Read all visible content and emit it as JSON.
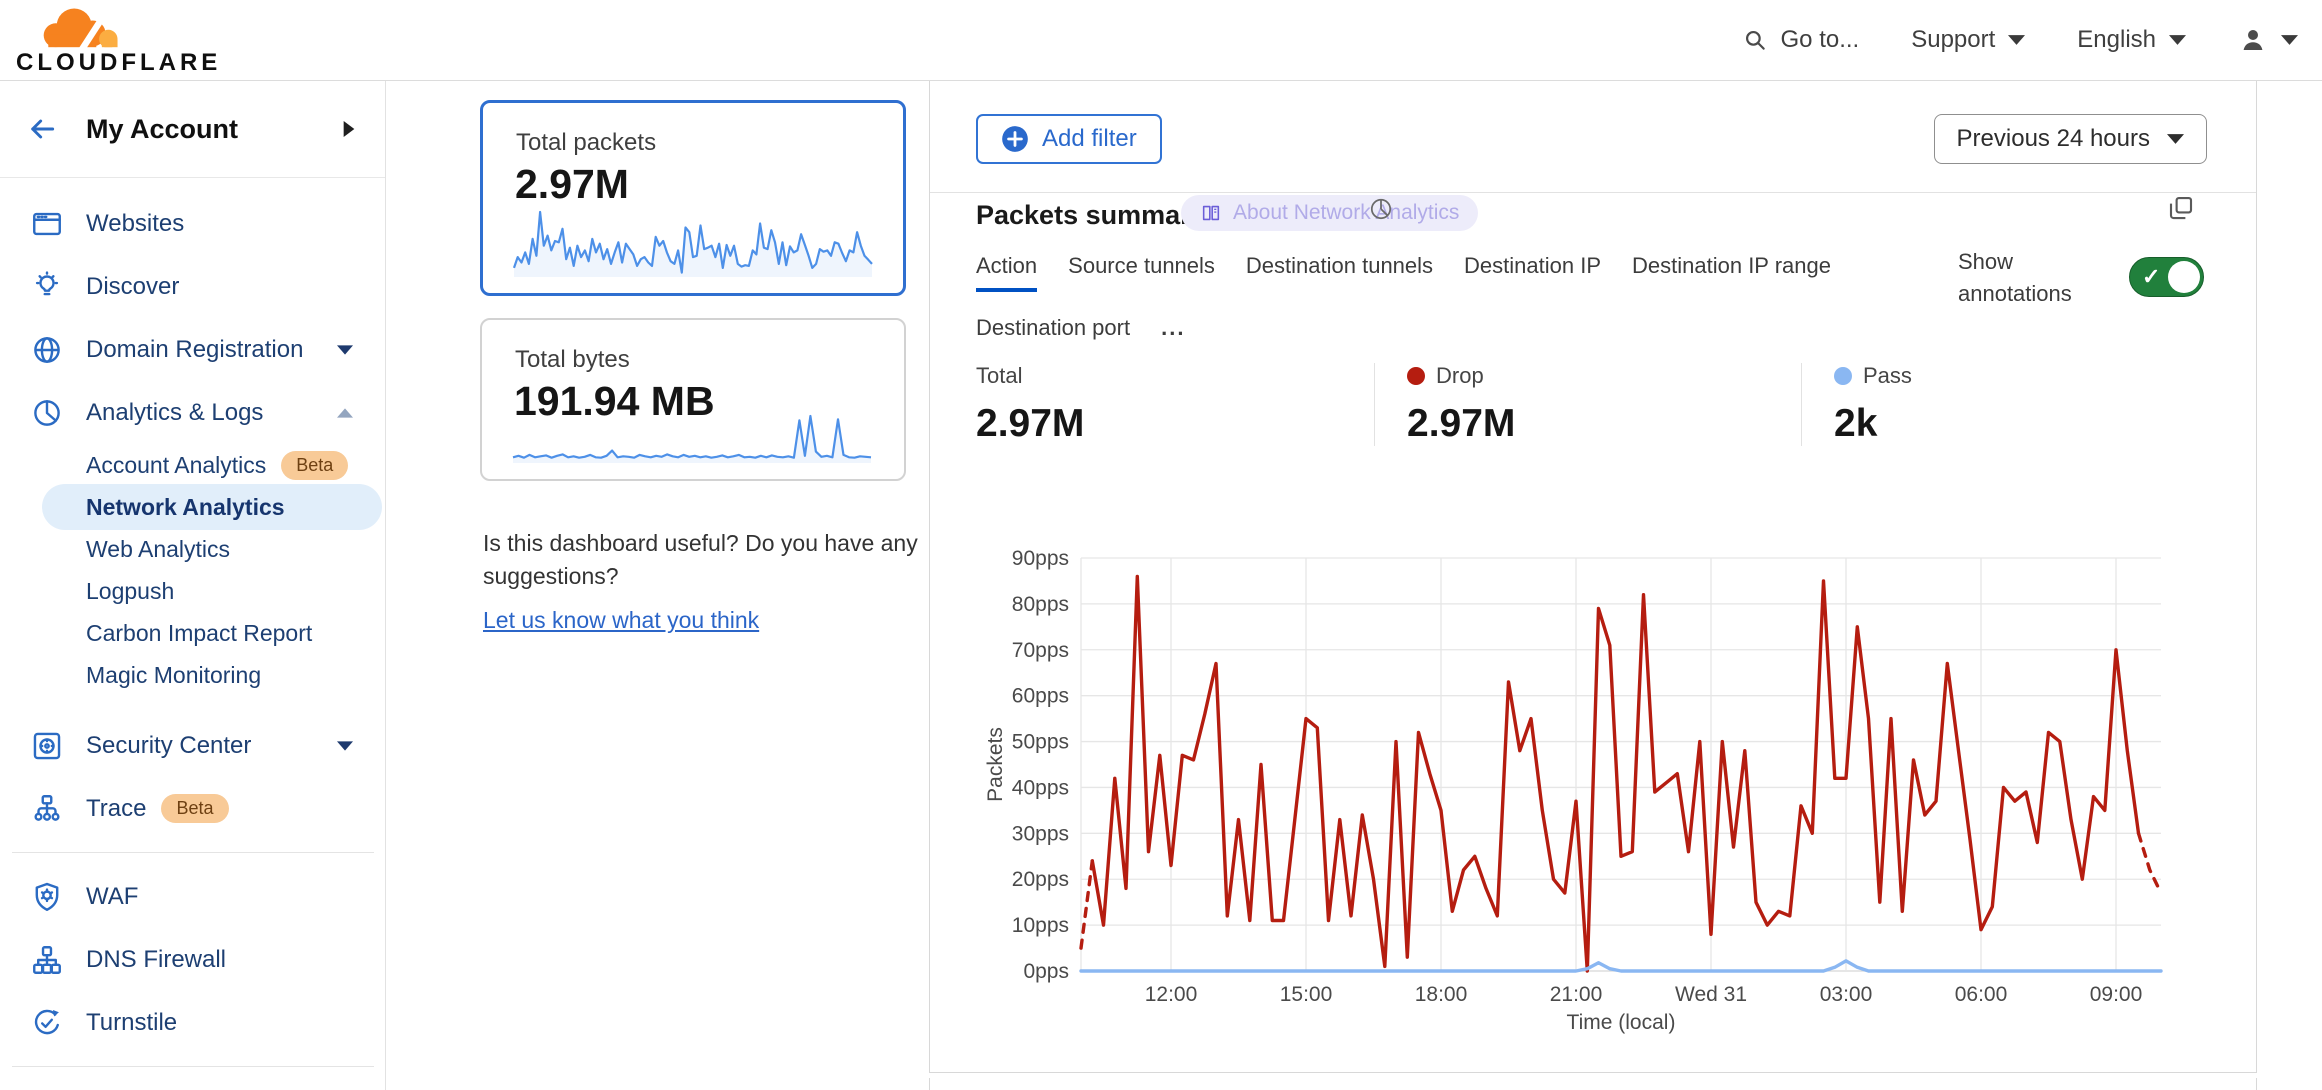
{
  "header": {
    "logo_text": "CLOUDFLARE",
    "goto_label": "Go to...",
    "support_label": "Support",
    "language_label": "English"
  },
  "sidebar": {
    "account_label": "My Account",
    "items": [
      {
        "type": "item",
        "label": "Websites",
        "icon": "browser-icon"
      },
      {
        "type": "item",
        "label": "Discover",
        "icon": "lightbulb-icon"
      },
      {
        "type": "item",
        "label": "Domain Registration",
        "icon": "globe-icon",
        "caret": "down"
      },
      {
        "type": "item",
        "label": "Analytics & Logs",
        "icon": "pie-chart-icon",
        "caret": "up"
      },
      {
        "type": "subitem",
        "label": "Account Analytics",
        "badge": "Beta"
      },
      {
        "type": "subitem",
        "label": "Network Analytics",
        "selected": true
      },
      {
        "type": "subitem",
        "label": "Web Analytics"
      },
      {
        "type": "subitem",
        "label": "Logpush"
      },
      {
        "type": "subitem",
        "label": "Carbon Impact Report"
      },
      {
        "type": "subitem",
        "label": "Magic Monitoring"
      },
      {
        "type": "item",
        "label": "Security Center",
        "icon": "vault-icon",
        "caret": "down",
        "gap_before": true
      },
      {
        "type": "item",
        "label": "Trace",
        "icon": "sitemap-icon",
        "badge": "Beta"
      },
      {
        "type": "divider"
      },
      {
        "type": "item",
        "label": "WAF",
        "icon": "shield-gear-icon"
      },
      {
        "type": "item",
        "label": "DNS Firewall",
        "icon": "dns-tree-icon"
      },
      {
        "type": "item",
        "label": "Turnstile",
        "icon": "turnstile-check-icon"
      },
      {
        "type": "divider"
      },
      {
        "type": "item",
        "label": "",
        "icon": "burst-icon"
      }
    ]
  },
  "metrics": {
    "packets": {
      "label": "Total packets",
      "value": "2.97M"
    },
    "bytes": {
      "label": "Total bytes",
      "value": "191.94 MB"
    }
  },
  "feedback": {
    "question_line1": "Is this dashboard useful? Do you have any",
    "question_line2": "suggestions?",
    "link_label": "Let us know what you think"
  },
  "toolbar": {
    "add_filter_label": "Add filter",
    "time_range_label": "Previous 24 hours"
  },
  "panel": {
    "title": "Packets summary",
    "about_badge_label": "About Network Analytics",
    "tabs": [
      "Action",
      "Source tunnels",
      "Destination tunnels",
      "Destination IP",
      "Destination IP range",
      "Destination port",
      "..."
    ],
    "active_tab": "Action",
    "show_annotations_line1": "Show",
    "show_annotations_line2": "annotations",
    "stats": [
      {
        "label": "Total",
        "value": "2.97M",
        "dot_color": null
      },
      {
        "label": "Drop",
        "value": "2.97M",
        "dot_color": "#b51d10"
      },
      {
        "label": "Pass",
        "value": "2k",
        "dot_color": "#8ab7f2"
      }
    ]
  },
  "colors": {
    "accent_blue": "#2a69cc",
    "drop_red": "#b51d10",
    "pass_blue": "#8ab7f2",
    "toggle_green": "#21803c",
    "beta_badge_bg": "#f8ca97",
    "selected_pill_bg": "#e1eefa",
    "active_tab_underline": "#0051c3",
    "spark_blue": "#4d90e8"
  },
  "chart_data": {
    "type": "line",
    "title": "Packets summary",
    "xlabel": "Time (local)",
    "ylabel": "Packets",
    "y_unit": "pps",
    "ylim": [
      0,
      90
    ],
    "y_tick_step": 10,
    "x_span_hours": 24,
    "grid": true,
    "x_ticks": [
      {
        "label": "12:00",
        "hour": 2
      },
      {
        "label": "15:00",
        "hour": 5
      },
      {
        "label": "18:00",
        "hour": 8
      },
      {
        "label": "21:00",
        "hour": 11
      },
      {
        "label": "Wed 31",
        "hour": 14
      },
      {
        "label": "03:00",
        "hour": 17
      },
      {
        "label": "06:00",
        "hour": 20
      },
      {
        "label": "09:00",
        "hour": 23
      }
    ],
    "legend": [
      {
        "name": "Drop",
        "color": "#b51d10"
      },
      {
        "name": "Pass",
        "color": "#8ab7f2"
      }
    ],
    "series": [
      {
        "name": "Drop",
        "color": "#b51d10",
        "dashed_head_points": 2,
        "dashed_tail_points": 3,
        "values": [
          5,
          24,
          10,
          42,
          18,
          86,
          26,
          47,
          23,
          47,
          46,
          56,
          67,
          12,
          33,
          11,
          45,
          11,
          11,
          33,
          55,
          53,
          11,
          33,
          12,
          34,
          20,
          1,
          50,
          3,
          52,
          43,
          35,
          13,
          22,
          25,
          18,
          12,
          63,
          48,
          55,
          35,
          20,
          17,
          37,
          0,
          79,
          71,
          25,
          26,
          82,
          39,
          41,
          43,
          26,
          50,
          8,
          50,
          27,
          48,
          15,
          10,
          13,
          12,
          36,
          30,
          85,
          42,
          42,
          75,
          55,
          15,
          55,
          13,
          46,
          34,
          37,
          67,
          48,
          29,
          9,
          14,
          40,
          37,
          39,
          28,
          52,
          50,
          33,
          20,
          38,
          35,
          70,
          48,
          30,
          22,
          17
        ]
      },
      {
        "name": "Pass",
        "color": "#8ab7f2",
        "dashed_head_points": 0,
        "dashed_tail_points": 0,
        "values": [
          0,
          0,
          0,
          0,
          0,
          0,
          0,
          0,
          0,
          0,
          0,
          0,
          0,
          0,
          0,
          0,
          0,
          0,
          0,
          0,
          0,
          0,
          0,
          0,
          0,
          0,
          0,
          0,
          0,
          0,
          0,
          0,
          0,
          0,
          0,
          0,
          0,
          0,
          0,
          0,
          0,
          0,
          0,
          0,
          0,
          0.5,
          1.8,
          0.5,
          0,
          0,
          0,
          0,
          0,
          0,
          0,
          0,
          0,
          0,
          0,
          0,
          0,
          0,
          0,
          0,
          0,
          0,
          0,
          0.8,
          2.2,
          0.8,
          0,
          0,
          0,
          0,
          0,
          0,
          0,
          0,
          0,
          0,
          0,
          0,
          0,
          0,
          0,
          0,
          0,
          0,
          0,
          0,
          0,
          0,
          0,
          0,
          0,
          0,
          0
        ]
      }
    ],
    "sparklines": {
      "total_packets": [
        12,
        28,
        20,
        35,
        18,
        55,
        30,
        95,
        45,
        60,
        38,
        52,
        50,
        70,
        25,
        42,
        15,
        45,
        28,
        38,
        22,
        55,
        35,
        48,
        25,
        40,
        18,
        35,
        50,
        20,
        48,
        40,
        32,
        15,
        25,
        28,
        20,
        15,
        58,
        45,
        52,
        35,
        22,
        18,
        38,
        5,
        72,
        65,
        28,
        30,
        75,
        40,
        42,
        45,
        28,
        48,
        12,
        46,
        30,
        45,
        18,
        14,
        16,
        15,
        38,
        32,
        78,
        42,
        40,
        68,
        50,
        18,
        50,
        16,
        44,
        35,
        38,
        62,
        46,
        30,
        12,
        18,
        40,
        36,
        38,
        30,
        50,
        48,
        34,
        22,
        38,
        35,
        65,
        45,
        30,
        24,
        18
      ],
      "total_bytes": [
        10,
        13,
        9,
        15,
        10,
        12,
        14,
        9,
        13,
        16,
        10,
        12,
        9,
        11,
        15,
        10,
        9,
        13,
        24,
        10,
        12,
        11,
        9,
        15,
        12,
        10,
        13,
        11,
        16,
        12,
        10,
        15,
        11,
        13,
        10,
        12,
        9,
        11,
        14,
        10,
        12,
        15,
        10,
        11,
        9,
        13,
        10,
        14,
        11,
        10,
        12,
        9,
        88,
        13,
        97,
        22,
        11,
        13,
        10,
        90,
        15,
        10,
        9,
        12,
        11,
        10
      ]
    }
  }
}
